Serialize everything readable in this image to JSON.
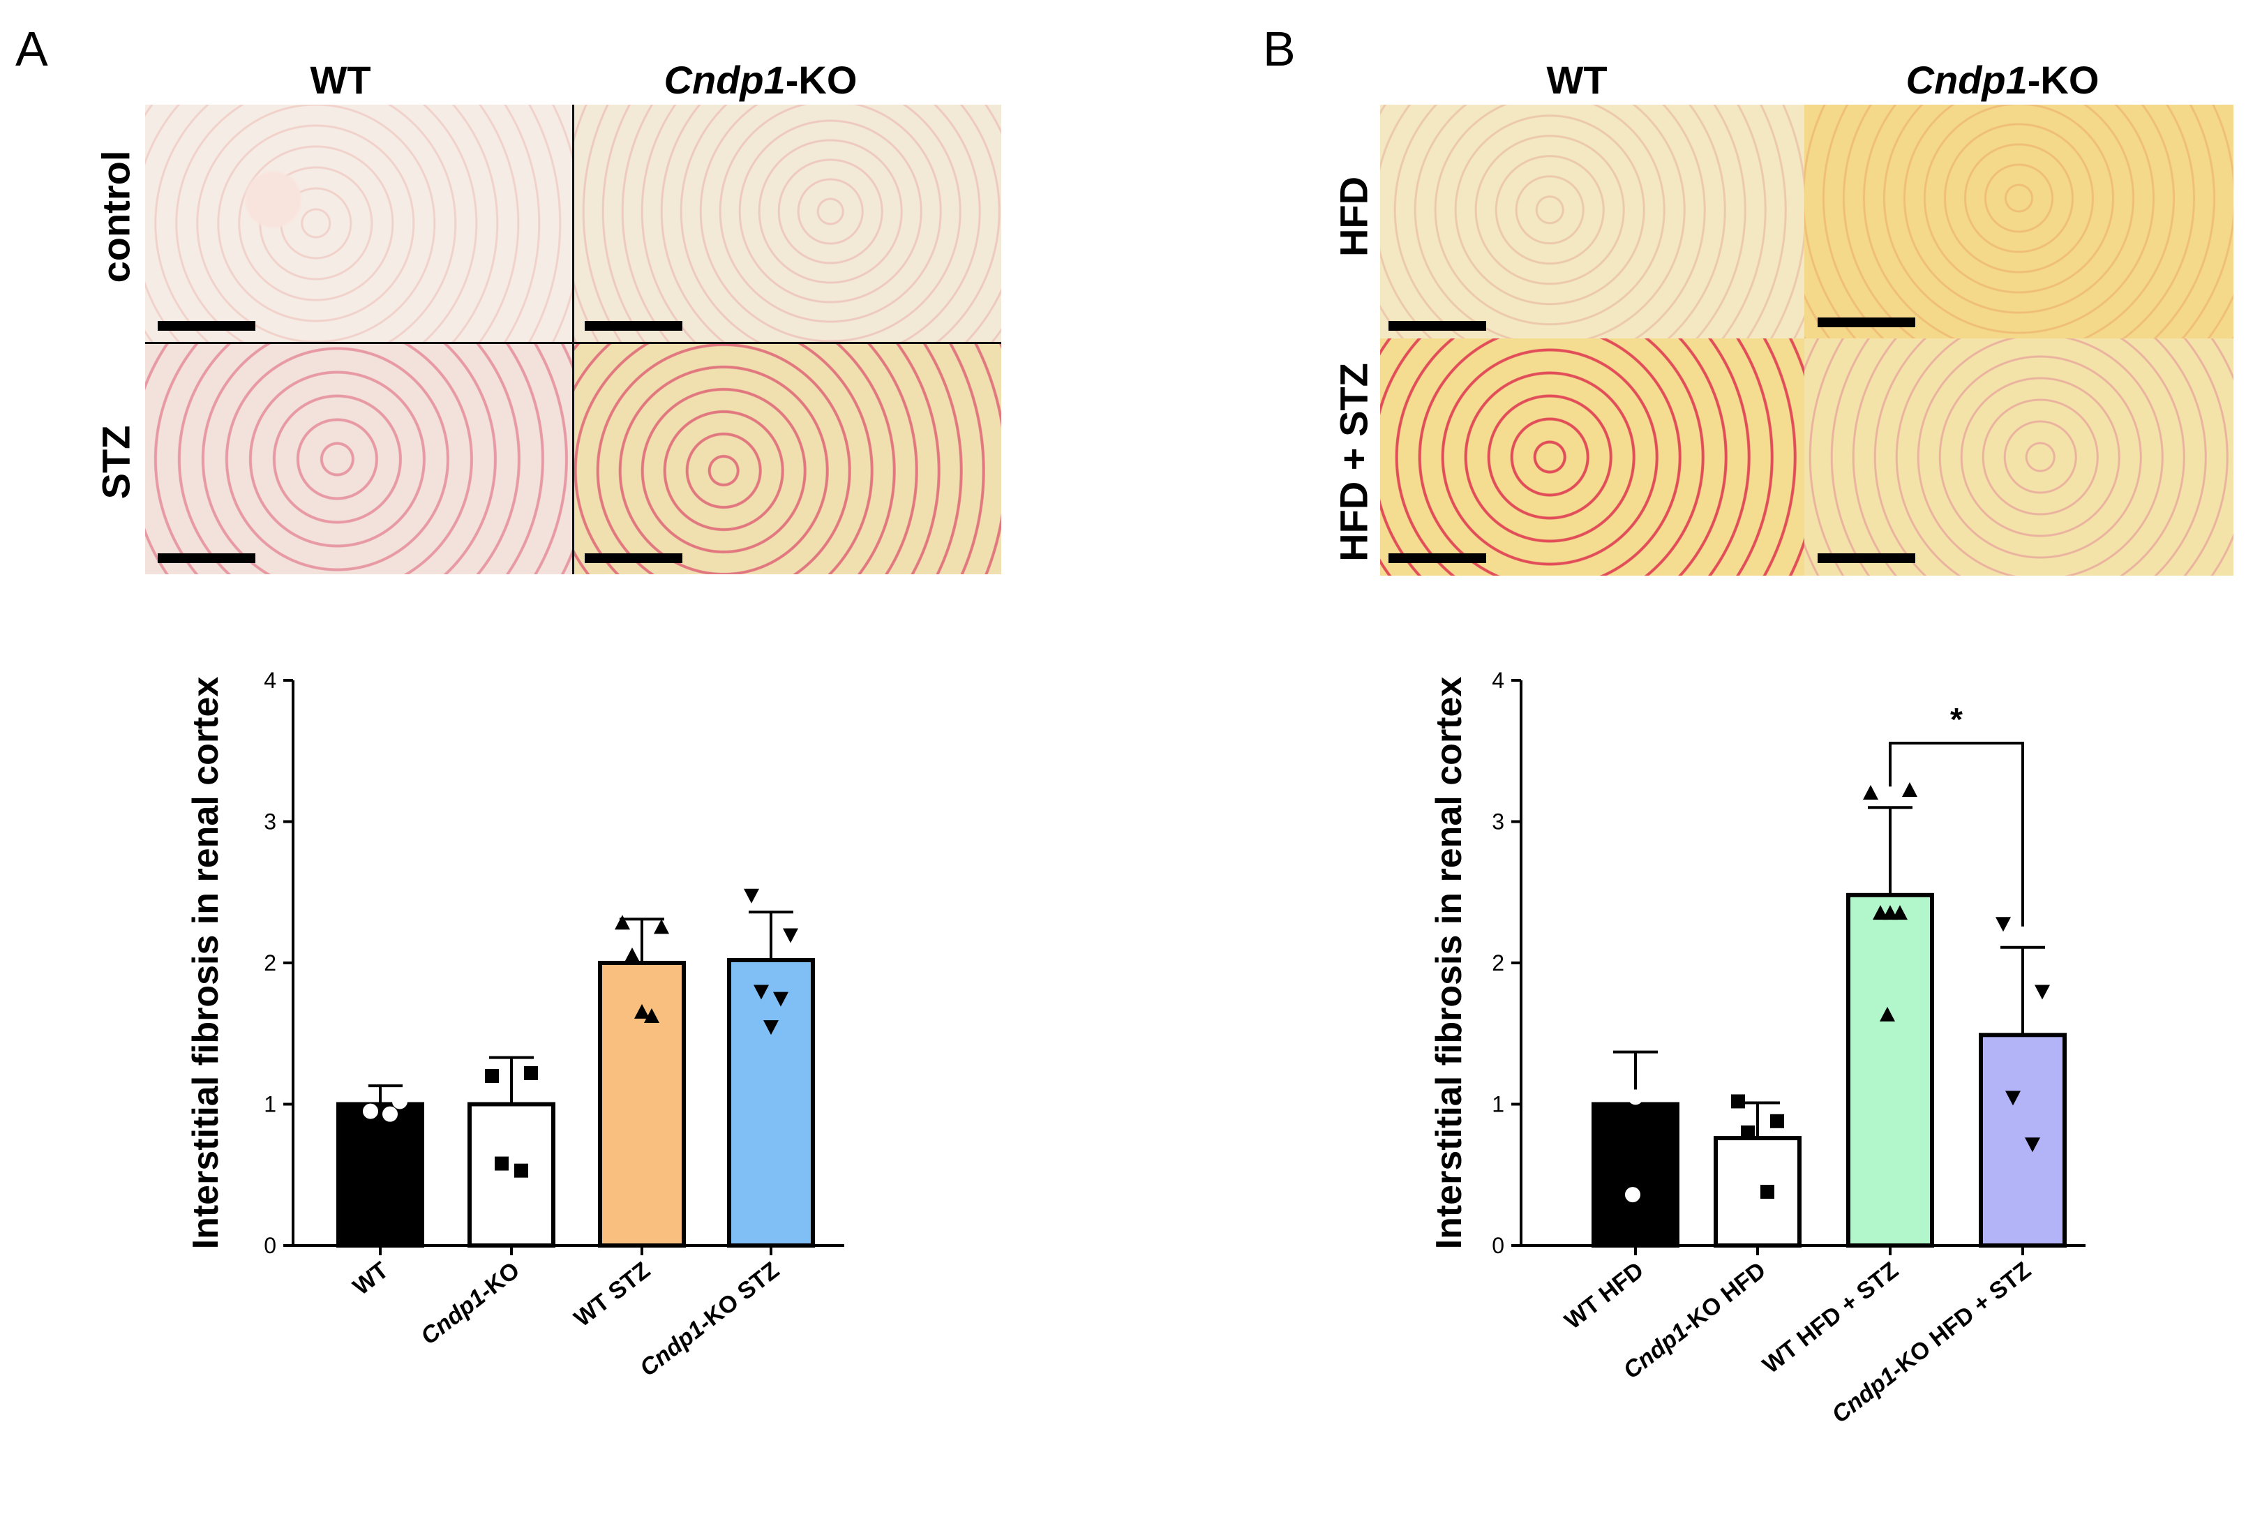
{
  "panels": [
    {
      "letter": "A",
      "col_headers": [
        {
          "italic": "",
          "rest": "WT"
        },
        {
          "italic": "Cndp1",
          "rest": "-KO"
        }
      ],
      "row_headers": [
        "control",
        "STZ"
      ]
    },
    {
      "letter": "B",
      "col_headers": [
        {
          "italic": "",
          "rest": "WT"
        },
        {
          "italic": "Cndp1",
          "rest": "-KO"
        }
      ],
      "row_headers": [
        "HFD",
        "HFD + STZ"
      ]
    }
  ],
  "chart_data": [
    {
      "type": "bar",
      "ylabel": "Interstitial fibrosis in renal cortex",
      "ylim": [
        0,
        4
      ],
      "yticks": [
        "0",
        "1",
        "2",
        "3",
        "4"
      ],
      "categories": [
        {
          "italic": "",
          "rest": "WT"
        },
        {
          "italic": "Cndp1",
          "rest": "-KO"
        },
        {
          "italic": "",
          "rest": "WT STZ"
        },
        {
          "italic": "Cndp1",
          "rest": "-KO STZ"
        }
      ],
      "values": [
        1.0,
        1.0,
        2.0,
        2.02
      ],
      "errors": [
        0.13,
        0.33,
        0.31,
        0.34
      ],
      "colors": [
        "#000000",
        "#ffffff",
        "#f9bf7e",
        "#7fbff5"
      ],
      "markers": [
        "circle-open",
        "square",
        "triangle-up",
        "triangle-down"
      ],
      "points": [
        [
          1.13,
          1.02,
          0.95,
          0.93
        ],
        [
          1.2,
          1.22,
          0.58,
          0.53
        ],
        [
          2.28,
          2.25,
          2.05,
          1.62,
          1.65
        ],
        [
          2.48,
          2.2,
          1.8,
          1.75,
          1.55
        ]
      ],
      "annotations": []
    },
    {
      "type": "bar",
      "ylabel": "Interstitial fibrosis in renal cortex",
      "ylim": [
        0,
        4
      ],
      "yticks": [
        "0",
        "1",
        "2",
        "3",
        "4"
      ],
      "categories": [
        {
          "italic": "",
          "rest": "WT HFD"
        },
        {
          "italic": "Cndp1",
          "rest": "-KO HFD"
        },
        {
          "italic": "",
          "rest": "WT HFD + STZ"
        },
        {
          "italic": "Cndp1",
          "rest": "-KO HFD + STZ"
        }
      ],
      "values": [
        1.0,
        0.76,
        2.48,
        1.49
      ],
      "errors": [
        0.37,
        0.25,
        0.62,
        0.62
      ],
      "colors": [
        "#000000",
        "#ffffff",
        "#b2f7cc",
        "#b3b3f7"
      ],
      "markers": [
        "circle-open",
        "square",
        "triangle-up",
        "triangle-down"
      ],
      "points": [
        [
          1.28,
          1.23,
          1.1,
          1.1,
          1.05,
          0.36
        ],
        [
          1.02,
          0.88,
          0.8,
          0.38
        ],
        [
          3.2,
          3.22,
          2.35,
          2.35,
          2.35,
          1.63
        ],
        [
          2.28,
          1.8,
          1.05,
          0.72
        ]
      ],
      "annotations": [
        {
          "from": 2,
          "to": 3,
          "text": "*"
        }
      ]
    }
  ]
}
